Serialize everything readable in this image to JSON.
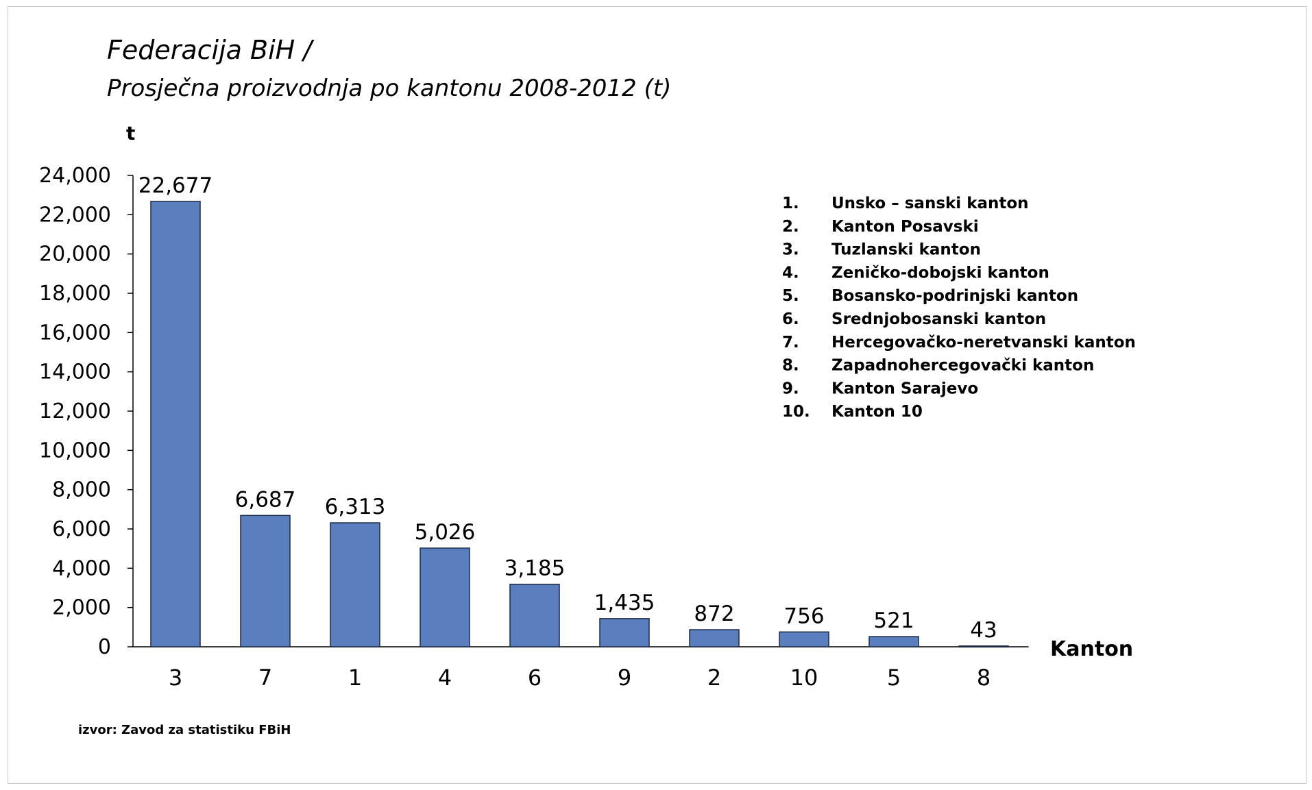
{
  "chart_data": {
    "type": "bar",
    "title": "Federacija BiH /",
    "subtitle": "Prosječna proizvodnja po kantonu 2008-2012 (t)",
    "ylabel": "t",
    "xlabel": "Kanton",
    "ylim": [
      0,
      24000
    ],
    "yticks": [
      0,
      2000,
      4000,
      6000,
      8000,
      10000,
      12000,
      14000,
      16000,
      18000,
      20000,
      22000,
      24000
    ],
    "categories": [
      "3",
      "7",
      "1",
      "4",
      "6",
      "9",
      "2",
      "10",
      "5",
      "8"
    ],
    "values": [
      22677,
      6687,
      6313,
      5026,
      3185,
      1435,
      872,
      756,
      521,
      43
    ],
    "data_labels": [
      "22,677",
      "6,687",
      "6,313",
      "5,026",
      "3,185",
      "1,435",
      "872",
      "756",
      "521",
      "43"
    ],
    "legend_placement": "top-right",
    "legend": [
      {
        "num": "1.",
        "name": "Unsko – sanski kanton"
      },
      {
        "num": "2.",
        "name": "Kanton Posavski"
      },
      {
        "num": "3.",
        "name": "Tuzlanski kanton"
      },
      {
        "num": "4.",
        "name": "Zeničko-dobojski kanton"
      },
      {
        "num": "5.",
        "name": "Bosansko-podrinjski kanton"
      },
      {
        "num": "6.",
        "name": "Srednjobosanski kanton"
      },
      {
        "num": "7.",
        "name": "Hercegovačko-neretvanski kanton"
      },
      {
        "num": "8.",
        "name": "Zapadnohercegovački kanton"
      },
      {
        "num": "9.",
        "name": "Kanton Sarajevo"
      },
      {
        "num": "10.",
        "name": "Kanton 10"
      }
    ],
    "source": "izvor: Zavod za statistiku FBiH",
    "grid": false,
    "colors": {
      "bar": "#5b7ebf",
      "bar_edge": "#1c2a44",
      "axis": "#000000"
    }
  }
}
